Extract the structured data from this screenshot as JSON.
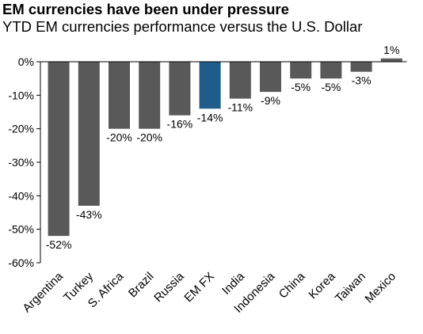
{
  "title": "EM currencies have been under pressure",
  "subtitle": "YTD EM currencies performance versus the U.S. Dollar",
  "colors": {
    "bar": "#595959",
    "highlight": "#1f5c8a",
    "axis": "#000000"
  },
  "chart_data": {
    "type": "bar",
    "title": "EM currencies have been under pressure",
    "subtitle": "YTD EM currencies performance versus the U.S. Dollar",
    "categories": [
      "Argentina",
      "Turkey",
      "S. Africa",
      "Brazil",
      "Russia",
      "EM FX",
      "India",
      "Indonesia",
      "China",
      "Korea",
      "Taiwan",
      "Mexico"
    ],
    "values": [
      -52,
      -43,
      -20,
      -20,
      -16,
      -14,
      -11,
      -9,
      -5,
      -5,
      -3,
      1
    ],
    "value_labels": [
      "-52%",
      "-43%",
      "-20%",
      "-20%",
      "-16%",
      "-14%",
      "-11%",
      "-9%",
      "-5%",
      "-5%",
      "-3%",
      "1%"
    ],
    "highlight_category": "EM FX",
    "ylim": [
      -60,
      0
    ],
    "yticks": [
      0,
      -10,
      -20,
      -30,
      -40,
      -50,
      -60
    ],
    "ytick_labels": [
      "0%",
      "-10%",
      "-20%",
      "-30%",
      "-40%",
      "-50%",
      "-60%"
    ],
    "xlabel": "",
    "ylabel": "",
    "grid": false,
    "legend": "none"
  }
}
